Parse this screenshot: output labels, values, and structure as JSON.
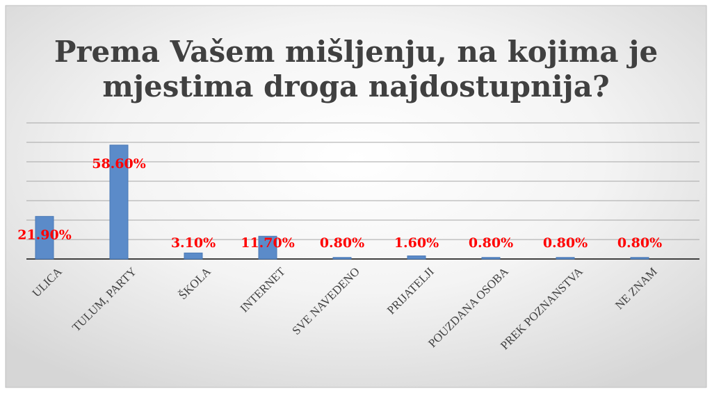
{
  "chart_data": {
    "type": "bar",
    "title": [
      "Prema Vašem mišljenju, na kojima je",
      "mjestima droga najdostupnija?"
    ],
    "categories": [
      "ULICA",
      "TULUM, PARTY",
      "ŠKOLA",
      "INTERNET",
      "SVE NAVEDENO",
      "PRIJATELJI",
      "POUZDANA OSOBA",
      "PREK POZNANSTVA",
      "NE ZNAM"
    ],
    "values": [
      21.9,
      58.6,
      3.1,
      11.7,
      0.8,
      1.6,
      0.8,
      0.8,
      0.8
    ],
    "value_labels": [
      "21.90%",
      "58.60%",
      "3.10%",
      "11.70%",
      "0.80%",
      "1.60%",
      "0.80%",
      "0.80%",
      "0.80%"
    ],
    "color": "#5b8bc9",
    "label_color": "#ff0000",
    "ylim": [
      0,
      70
    ],
    "yticks": [
      0,
      10,
      20,
      30,
      40,
      50,
      60,
      70
    ],
    "grid": true
  }
}
